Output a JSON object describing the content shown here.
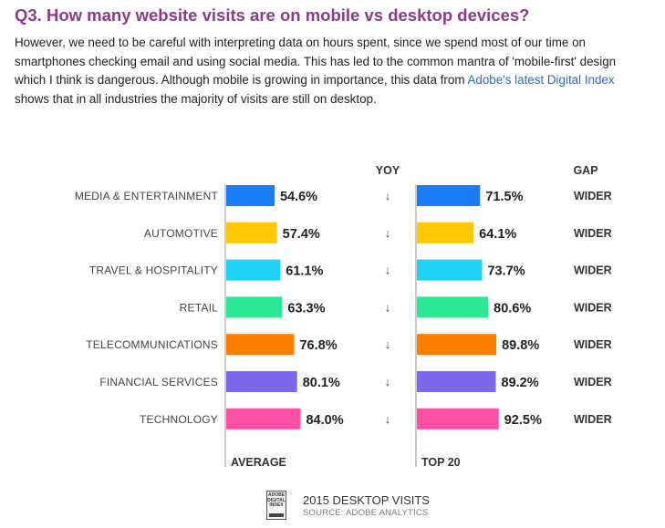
{
  "heading": "Q3. How many website visits are on mobile vs desktop devices?",
  "paragraph": {
    "text_before_link": "However, we need to be careful with interpreting data on hours spent, since we spend most of our time on smartphones checking email and using social media. This has led to the common mantra of 'mobile-first' design which I think is dangerous. Although mobile is growing in importance, this data from ",
    "link_text": "Adobe's latest Digital Index",
    "text_after_link": " shows that in all industries the majority of visits are still on desktop."
  },
  "footer": {
    "icon_text": "ADOBE DIGITAL INDEX",
    "title": "2015 DESKTOP VISITS",
    "source": "SOURCE: ADOBE ANALYTICS"
  },
  "chart_data": {
    "type": "bar",
    "orientation": "horizontal",
    "categories": [
      "MEDIA & ENTERTAINMENT",
      "AUTOMOTIVE",
      "TRAVEL & HOSPITALITY",
      "RETAIL",
      "TELECOMMUNICATIONS",
      "FINANCIAL SERVICES",
      "TECHNOLOGY"
    ],
    "colors": [
      "#1a7cf4",
      "#ffc800",
      "#1fd3f4",
      "#2ae894",
      "#ff7e00",
      "#7b68ee",
      "#ff4fa4"
    ],
    "series": [
      {
        "name": "AVERAGE",
        "values": [
          54.6,
          57.4,
          61.1,
          63.3,
          76.8,
          80.1,
          84.0
        ],
        "labels": [
          "54.6%",
          "57.4%",
          "61.1%",
          "63.3%",
          "76.8%",
          "80.1%",
          "84.0%"
        ]
      },
      {
        "name": "TOP 20",
        "values": [
          71.5,
          64.1,
          73.7,
          80.6,
          89.8,
          89.2,
          92.5
        ],
        "labels": [
          "71.5%",
          "64.1%",
          "73.7%",
          "80.6%",
          "89.8%",
          "89.2%",
          "92.5%"
        ]
      }
    ],
    "yoy_header": "YOY",
    "yoy_symbol": "↓",
    "gap_header": "GAP",
    "gap": [
      "WIDER",
      "WIDER",
      "WIDER",
      "WIDER",
      "WIDER",
      "WIDER",
      "WIDER"
    ],
    "bar_scale_max": 100
  }
}
